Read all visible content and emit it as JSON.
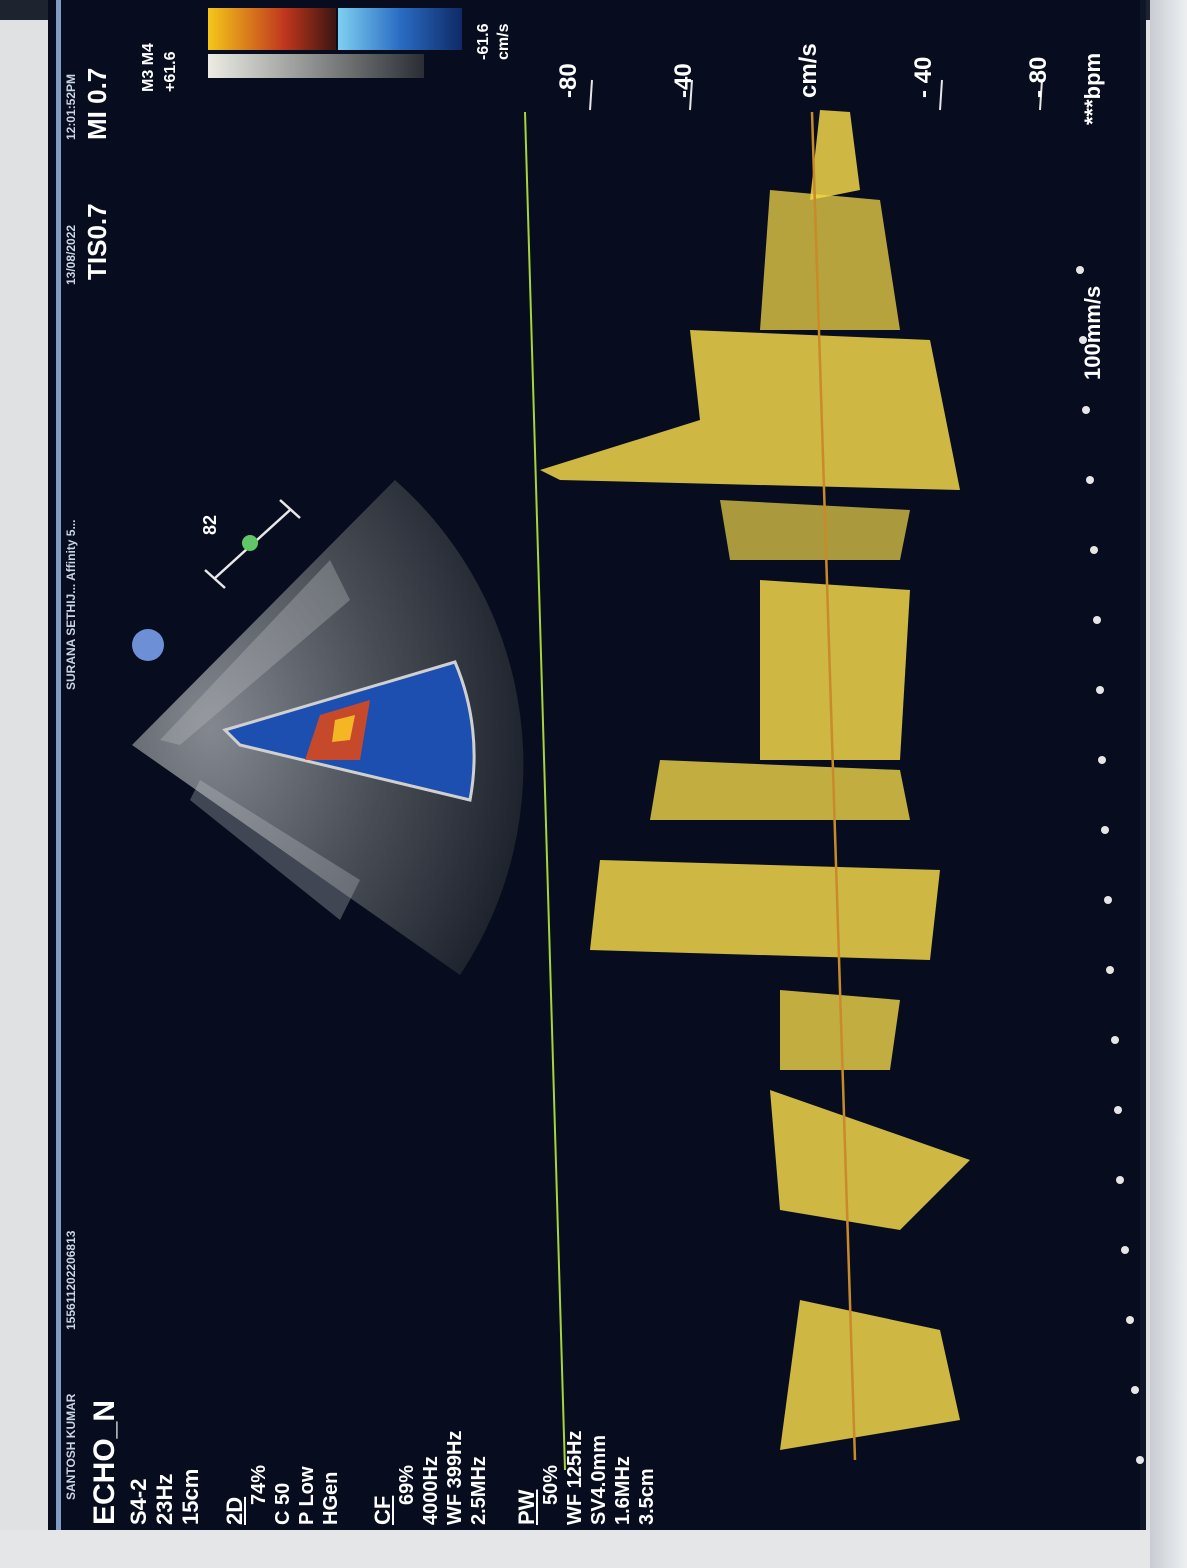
{
  "header": {
    "patient_name": "SANTOSH KUMAR",
    "patient_id": "155611202206813",
    "institution": "SURANA SETHIJ... Affinity 5...",
    "date": "13/08/2022",
    "time": "12:01:52PM",
    "tis": "TIS0.7",
    "mi": "MI 0.7"
  },
  "params": {
    "preset": "ECHO_N",
    "probe": "S4-2",
    "frame_rate": "23Hz",
    "depth": "15cm",
    "mode_2d": "2D",
    "gain_2d": "74%",
    "compression": "C 50",
    "persistence": "P Low",
    "resolution": "HGen",
    "mode_cf": "CF",
    "cf_gain": "69%",
    "cf_prf": "4000Hz",
    "cf_wf": "WF 399Hz",
    "cf_freq": "2.5MHz",
    "mode_pw": "PW",
    "pw_gain": "50%",
    "pw_wf": "WF 125Hz",
    "pw_sv": "SV4.0mm",
    "pw_freq": "1.6MHz",
    "pw_depth": "3.5cm"
  },
  "colorbar": {
    "map": "M3 M4",
    "top": "+61.6",
    "bottom": "-61.6",
    "unit": "cm/s",
    "colors": [
      "#f6c21a",
      "#c0361d",
      "#1a58b0",
      "#7ed0f0"
    ]
  },
  "doppler": {
    "scale_labels": [
      "-80",
      "-40",
      "cm/s",
      "- 40",
      "- 80"
    ],
    "sweep_speed": "100mm/s",
    "heart_rate": "***bpm",
    "waveform_color": "#f1d64a",
    "baseline_color": "#c98a2a",
    "trace_line_color": "#a6d43a"
  },
  "sector": {
    "sample_gate_label": "82"
  }
}
